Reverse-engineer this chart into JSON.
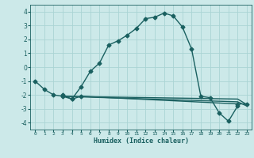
{
  "xlabel": "Humidex (Indice chaleur)",
  "background_color": "#cce9e9",
  "grid_color": "#aad4d4",
  "line_color": "#1a6060",
  "xlim": [
    -0.5,
    23.5
  ],
  "ylim": [
    -4.5,
    4.5
  ],
  "xticks": [
    0,
    1,
    2,
    3,
    4,
    5,
    6,
    7,
    8,
    9,
    10,
    11,
    12,
    13,
    14,
    15,
    16,
    17,
    18,
    19,
    20,
    21,
    22,
    23
  ],
  "yticks": [
    -4,
    -3,
    -2,
    -1,
    0,
    1,
    2,
    3,
    4
  ],
  "curve1_x": [
    0,
    1,
    2,
    3,
    4,
    5,
    6,
    7,
    8,
    9,
    10,
    11,
    12,
    13,
    14,
    15,
    16,
    17,
    18,
    19,
    20,
    21,
    22
  ],
  "curve1_y": [
    -1.0,
    -1.6,
    -2.0,
    -2.1,
    -2.3,
    -1.4,
    -0.3,
    0.3,
    1.6,
    1.9,
    2.3,
    2.8,
    3.5,
    3.6,
    3.9,
    3.7,
    2.9,
    1.3,
    -2.1,
    -2.2,
    -3.3,
    -3.9,
    -2.8
  ],
  "curve2_x": [
    3,
    4,
    5,
    22,
    23
  ],
  "curve2_y": [
    -2.0,
    -2.3,
    -2.1,
    -2.65,
    -2.65
  ],
  "curve3_x": [
    3,
    22,
    23
  ],
  "curve3_y": [
    -2.1,
    -2.3,
    -2.7
  ],
  "curve4_x": [
    3,
    22,
    23
  ],
  "curve4_y": [
    -2.1,
    -2.5,
    -2.8
  ],
  "markersize": 2.5,
  "linewidth": 1.0
}
